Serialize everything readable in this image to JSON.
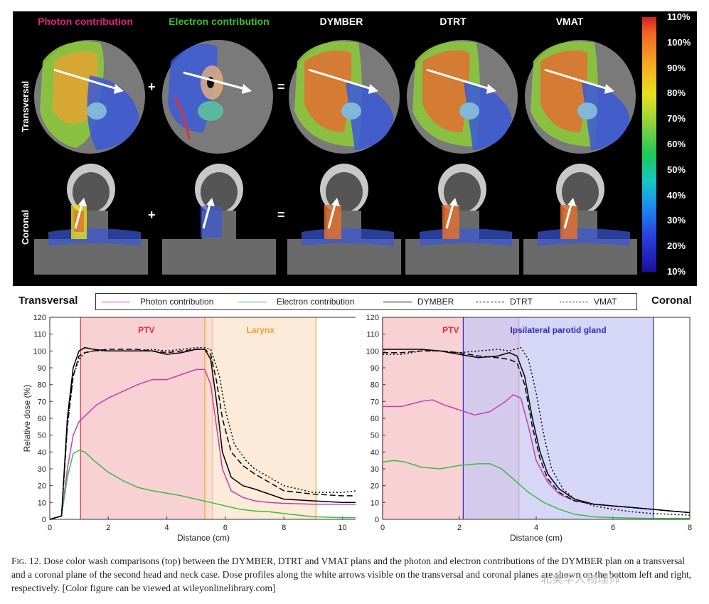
{
  "top": {
    "columns": [
      {
        "title": "Photon contribution",
        "color": "#e02080"
      },
      {
        "title": "Electron contribution",
        "color": "#3ac030"
      },
      {
        "title": "DYMBER",
        "color": "#ffffff"
      },
      {
        "title": "DTRT",
        "color": "#ffffff"
      },
      {
        "title": "VMAT",
        "color": "#ffffff"
      }
    ],
    "rows": [
      "Transversal",
      "Coronal"
    ],
    "operators": [
      "+",
      "=",
      "+",
      "="
    ],
    "colorbar_ticks": [
      "110%",
      "100%",
      "90%",
      "80%",
      "70%",
      "60%",
      "50%",
      "40%",
      "30%",
      "20%",
      "10%"
    ]
  },
  "legend": {
    "left_label": "Transversal",
    "right_label": "Coronal",
    "items": [
      {
        "label": "Photon contribution",
        "color": "#c83cb4",
        "dash": "solid"
      },
      {
        "label": "Electron contribution",
        "color": "#3cbc3c",
        "dash": "solid"
      },
      {
        "label": "DYMBER",
        "color": "#000000",
        "dash": "solid"
      },
      {
        "label": "DTRT",
        "color": "#000000",
        "dash": "dashed"
      },
      {
        "label": "VMAT",
        "color": "#000000",
        "dash": "dotted"
      }
    ]
  },
  "chart_data": [
    {
      "type": "line",
      "xlabel": "Distance (cm)",
      "ylabel": "Relative dose (%)",
      "xlim": [
        0,
        10.5
      ],
      "ylim": [
        0,
        120
      ],
      "xticks": [
        0,
        2,
        4,
        6,
        8,
        10
      ],
      "yticks": [
        0,
        10,
        20,
        30,
        40,
        50,
        60,
        70,
        80,
        90,
        100,
        110,
        120
      ],
      "grid": false,
      "regions": [
        {
          "label": "PTV",
          "from": 1.05,
          "to": 5.55,
          "color": "#f4c2c6",
          "label_color": "#e03030"
        },
        {
          "label": "Larynx",
          "from": 5.3,
          "to": 9.1,
          "color": "#fbe4cc",
          "label_color": "#f0a030"
        }
      ],
      "series": [
        {
          "name": "Photon contribution",
          "color": "#c83cb4",
          "dash": "solid",
          "x": [
            0,
            0.4,
            0.6,
            0.8,
            1.0,
            1.3,
            1.6,
            2.0,
            2.5,
            3.0,
            3.5,
            3.8,
            4.0,
            4.5,
            5.0,
            5.3,
            5.5,
            5.7,
            5.9,
            6.2,
            6.6,
            7.0,
            7.5,
            8.0,
            9.0,
            10.0,
            10.5
          ],
          "y": [
            0,
            2,
            30,
            50,
            58,
            63,
            68,
            72,
            76,
            80,
            83,
            83,
            83,
            86,
            89,
            89,
            80,
            55,
            30,
            17,
            13,
            11,
            10,
            9.5,
            9,
            9,
            9
          ]
        },
        {
          "name": "Electron contribution",
          "color": "#3cbc3c",
          "dash": "solid",
          "x": [
            0,
            0.4,
            0.6,
            0.8,
            1.0,
            1.2,
            1.5,
            2.0,
            2.5,
            3.0,
            3.5,
            4.0,
            4.5,
            5.0,
            5.5,
            6.0,
            6.5,
            7.0,
            7.5,
            8.0,
            8.5,
            9.0,
            10.0,
            10.5
          ],
          "y": [
            0,
            2,
            25,
            39,
            41,
            40,
            35,
            28,
            23,
            19,
            17,
            15.5,
            14,
            12,
            10,
            8,
            6,
            5,
            4.5,
            3.5,
            2.5,
            1.5,
            1,
            1
          ]
        },
        {
          "name": "DYMBER",
          "color": "#000000",
          "dash": "solid",
          "x": [
            0,
            0.4,
            0.6,
            0.8,
            1.0,
            1.2,
            1.5,
            2.0,
            2.5,
            3.0,
            3.5,
            4.0,
            4.5,
            5.0,
            5.3,
            5.5,
            5.7,
            5.9,
            6.2,
            6.6,
            7.0,
            7.5,
            8.0,
            9.0,
            10.0,
            10.5
          ],
          "y": [
            0,
            2,
            60,
            90,
            100,
            102,
            101,
            100,
            100,
            100,
            100,
            98,
            99,
            101,
            101,
            95,
            70,
            40,
            25,
            20,
            18,
            15,
            12,
            11,
            10,
            10
          ]
        },
        {
          "name": "DTRT",
          "color": "#000000",
          "dash": "dashed",
          "x": [
            0,
            0.4,
            0.6,
            0.8,
            1.0,
            1.2,
            1.5,
            2.0,
            2.5,
            3.0,
            3.5,
            4.0,
            4.5,
            5.0,
            5.3,
            5.5,
            5.7,
            5.9,
            6.2,
            6.6,
            7.0,
            7.5,
            8.0,
            9.0,
            10.0,
            10.5
          ],
          "y": [
            0,
            2,
            55,
            85,
            97,
            99,
            100,
            101,
            101,
            101,
            100,
            99,
            100,
            101,
            101,
            98,
            82,
            60,
            40,
            32,
            27,
            22,
            17,
            15,
            14,
            14
          ]
        },
        {
          "name": "VMAT",
          "color": "#000000",
          "dash": "dotted",
          "x": [
            0,
            0.4,
            0.6,
            0.8,
            1.0,
            1.2,
            1.5,
            2.0,
            2.5,
            3.0,
            3.5,
            4.0,
            4.5,
            5.0,
            5.3,
            5.5,
            5.8,
            6.0,
            6.3,
            6.7,
            7.0,
            7.5,
            8.0,
            9.0,
            10.0,
            10.5
          ],
          "y": [
            0,
            2,
            55,
            85,
            95,
            99,
            100,
            100,
            100,
            100,
            101,
            100,
            101,
            102,
            102,
            101,
            85,
            65,
            45,
            35,
            30,
            25,
            20,
            16,
            16,
            17
          ]
        }
      ]
    },
    {
      "type": "line",
      "xlabel": "Distance (cm)",
      "ylabel": "",
      "xlim": [
        0,
        8
      ],
      "ylim": [
        0,
        120
      ],
      "xticks": [
        0,
        2,
        4,
        6,
        8
      ],
      "yticks": [
        0,
        10,
        20,
        30,
        40,
        50,
        60,
        70,
        80,
        90,
        100,
        110,
        120
      ],
      "grid": false,
      "regions": [
        {
          "label": "PTV",
          "from": 0,
          "to": 3.55,
          "color": "#f4c2c6",
          "label_color": "#e03030"
        },
        {
          "label": "Ipsilateral parotid gland",
          "from": 2.1,
          "to": 7.05,
          "color": "#c8c8f4",
          "label_color": "#2a2acc"
        }
      ],
      "series": [
        {
          "name": "Photon contribution",
          "color": "#c83cb4",
          "dash": "solid",
          "x": [
            0,
            0.5,
            1.0,
            1.3,
            1.6,
            2.0,
            2.4,
            2.8,
            3.2,
            3.4,
            3.6,
            3.8,
            4.0,
            4.3,
            4.6,
            5.0,
            5.5,
            6.0,
            6.5,
            7.0,
            7.5,
            8.0
          ],
          "y": [
            67,
            67,
            70,
            71,
            68,
            65,
            62,
            64,
            70,
            74,
            72,
            55,
            35,
            22,
            15,
            11,
            9,
            8,
            7,
            6,
            5,
            4
          ]
        },
        {
          "name": "Electron contribution",
          "color": "#3cbc3c",
          "dash": "solid",
          "x": [
            0,
            0.3,
            0.6,
            1.0,
            1.5,
            2.0,
            2.5,
            2.8,
            3.1,
            3.5,
            3.8,
            4.2,
            4.6,
            5.0,
            5.5,
            6.0,
            7.0,
            8.0
          ],
          "y": [
            34,
            35,
            34,
            31,
            30,
            32,
            33,
            33,
            30,
            22,
            16,
            10,
            6,
            3,
            1.5,
            1,
            0.5,
            0.5
          ]
        },
        {
          "name": "DYMBER",
          "color": "#000000",
          "dash": "solid",
          "x": [
            0,
            0.5,
            1.0,
            1.5,
            2.0,
            2.5,
            3.0,
            3.3,
            3.5,
            3.7,
            3.9,
            4.1,
            4.3,
            4.6,
            5.0,
            5.5,
            6.0,
            6.5,
            7.0,
            7.5,
            8.0
          ],
          "y": [
            101,
            101,
            101,
            100,
            98,
            96,
            97,
            99,
            97,
            85,
            60,
            40,
            27,
            18,
            12,
            9,
            8,
            7,
            6,
            5,
            4
          ]
        },
        {
          "name": "DTRT",
          "color": "#000000",
          "dash": "dashed",
          "x": [
            0,
            0.5,
            1.0,
            1.5,
            2.0,
            2.5,
            3.0,
            3.3,
            3.5,
            3.7,
            3.9,
            4.1,
            4.3,
            4.6,
            5.0,
            5.5,
            6.0,
            6.5,
            7.0,
            7.5,
            8.0
          ],
          "y": [
            99,
            99,
            100,
            100,
            99,
            97,
            96,
            95,
            93,
            80,
            55,
            36,
            24,
            16,
            11,
            9,
            8,
            7,
            6,
            5,
            4
          ]
        },
        {
          "name": "VMAT",
          "color": "#000000",
          "dash": "dotted",
          "x": [
            0,
            0.5,
            1.0,
            1.5,
            2.0,
            2.5,
            3.0,
            3.3,
            3.6,
            3.8,
            4.0,
            4.2,
            4.4,
            4.7,
            5.0,
            5.5,
            6.0,
            6.5,
            7.0,
            7.5,
            8.0
          ],
          "y": [
            98,
            98,
            100,
            100,
            99,
            100,
            101,
            100,
            102,
            95,
            75,
            50,
            30,
            18,
            12,
            8,
            6,
            4.5,
            3.5,
            3,
            2.5
          ]
        }
      ]
    }
  ],
  "caption": {
    "fig_label": "Fig. 12.",
    "text": " Dose color wash comparisons (top) between the DYMBER, DTRT and VMAT plans and the photon and electron contributions of the DYMBER plan on a transversal and a coronal plane of the second head and neck case. Dose profiles along the white arrows visible on the transversal and coronal planes are shown on the bottom left and right, respectively. [Color figure can be viewed at wileyonlinelibrary.com]"
  },
  "watermark": "北美华人物理师"
}
